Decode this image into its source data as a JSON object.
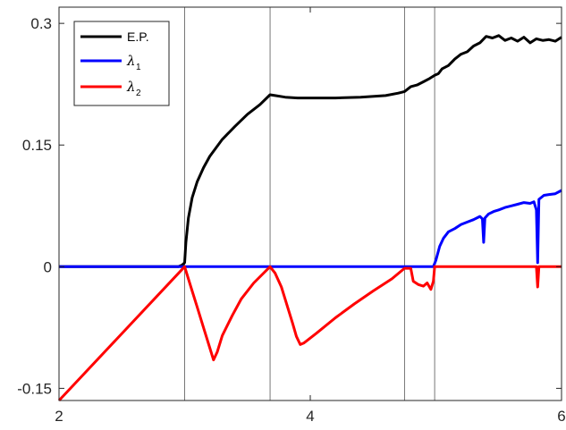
{
  "chart_data": {
    "type": "line",
    "title": "",
    "xlabel": "",
    "ylabel": "",
    "xlim": [
      2,
      6
    ],
    "ylim": [
      -0.165,
      0.32
    ],
    "x_ticks": [
      2,
      4,
      6
    ],
    "x_tick_labels": [
      "2",
      "4",
      "6"
    ],
    "y_ticks": [
      0.3,
      0.15,
      0,
      -0.15
    ],
    "y_tick_labels": [
      "0.3",
      "0.15",
      "0",
      "-0.15"
    ],
    "grid": false,
    "legend_position": "top-left",
    "legend": {
      "ep": "E.P.",
      "l1_sym": "λ",
      "l1_sub": "1",
      "l2_sym": "λ",
      "l2_sub": "2"
    },
    "vertical_lines_x": [
      3.0,
      3.68,
      4.75,
      4.99
    ],
    "series": [
      {
        "name": "E.P.",
        "color": "#000000",
        "points": [
          [
            2.0,
            0.0
          ],
          [
            2.5,
            0.0
          ],
          [
            2.95,
            0.0
          ],
          [
            2.98,
            0.002
          ],
          [
            3.0,
            0.005
          ],
          [
            3.01,
            0.03
          ],
          [
            3.03,
            0.06
          ],
          [
            3.06,
            0.085
          ],
          [
            3.1,
            0.105
          ],
          [
            3.15,
            0.122
          ],
          [
            3.2,
            0.136
          ],
          [
            3.3,
            0.157
          ],
          [
            3.4,
            0.173
          ],
          [
            3.5,
            0.188
          ],
          [
            3.6,
            0.2
          ],
          [
            3.68,
            0.212
          ],
          [
            3.72,
            0.211
          ],
          [
            3.8,
            0.209
          ],
          [
            3.9,
            0.208
          ],
          [
            4.0,
            0.208
          ],
          [
            4.2,
            0.208
          ],
          [
            4.4,
            0.209
          ],
          [
            4.6,
            0.211
          ],
          [
            4.7,
            0.214
          ],
          [
            4.75,
            0.216
          ],
          [
            4.8,
            0.222
          ],
          [
            4.85,
            0.224
          ],
          [
            4.9,
            0.228
          ],
          [
            4.95,
            0.232
          ],
          [
            4.99,
            0.236
          ],
          [
            5.02,
            0.238
          ],
          [
            5.05,
            0.244
          ],
          [
            5.1,
            0.248
          ],
          [
            5.15,
            0.256
          ],
          [
            5.2,
            0.262
          ],
          [
            5.25,
            0.265
          ],
          [
            5.3,
            0.272
          ],
          [
            5.35,
            0.276
          ],
          [
            5.4,
            0.284
          ],
          [
            5.45,
            0.282
          ],
          [
            5.5,
            0.285
          ],
          [
            5.55,
            0.279
          ],
          [
            5.6,
            0.282
          ],
          [
            5.65,
            0.278
          ],
          [
            5.7,
            0.283
          ],
          [
            5.75,
            0.276
          ],
          [
            5.8,
            0.281
          ],
          [
            5.85,
            0.279
          ],
          [
            5.9,
            0.28
          ],
          [
            5.95,
            0.278
          ],
          [
            6.0,
            0.283
          ]
        ]
      },
      {
        "name": "λ1",
        "color": "#0000ff",
        "points": [
          [
            2.0,
            0.0
          ],
          [
            3.0,
            0.0
          ],
          [
            3.68,
            0.0
          ],
          [
            4.75,
            0.0
          ],
          [
            4.98,
            0.0
          ],
          [
            5.0,
            0.008
          ],
          [
            5.03,
            0.025
          ],
          [
            5.06,
            0.035
          ],
          [
            5.1,
            0.043
          ],
          [
            5.15,
            0.047
          ],
          [
            5.2,
            0.052
          ],
          [
            5.25,
            0.055
          ],
          [
            5.3,
            0.058
          ],
          [
            5.35,
            0.062
          ],
          [
            5.37,
            0.059
          ],
          [
            5.38,
            0.03
          ],
          [
            5.39,
            0.06
          ],
          [
            5.42,
            0.065
          ],
          [
            5.46,
            0.068
          ],
          [
            5.5,
            0.07
          ],
          [
            5.55,
            0.073
          ],
          [
            5.6,
            0.075
          ],
          [
            5.65,
            0.077
          ],
          [
            5.7,
            0.079
          ],
          [
            5.75,
            0.078
          ],
          [
            5.78,
            0.08
          ],
          [
            5.8,
            0.07
          ],
          [
            5.81,
            0.005
          ],
          [
            5.82,
            0.083
          ],
          [
            5.86,
            0.088
          ],
          [
            5.9,
            0.089
          ],
          [
            5.95,
            0.09
          ],
          [
            6.0,
            0.094
          ]
        ]
      },
      {
        "name": "λ2",
        "color": "#ff0000",
        "points": [
          [
            2.0,
            -0.165
          ],
          [
            3.0,
            0.0
          ],
          [
            3.05,
            -0.025
          ],
          [
            3.1,
            -0.05
          ],
          [
            3.15,
            -0.075
          ],
          [
            3.19,
            -0.095
          ],
          [
            3.23,
            -0.115
          ],
          [
            3.26,
            -0.105
          ],
          [
            3.3,
            -0.085
          ],
          [
            3.38,
            -0.06
          ],
          [
            3.45,
            -0.04
          ],
          [
            3.55,
            -0.02
          ],
          [
            3.68,
            0.0
          ],
          [
            3.72,
            -0.008
          ],
          [
            3.77,
            -0.025
          ],
          [
            3.82,
            -0.05
          ],
          [
            3.86,
            -0.07
          ],
          [
            3.89,
            -0.086
          ],
          [
            3.92,
            -0.096
          ],
          [
            3.95,
            -0.094
          ],
          [
            4.05,
            -0.082
          ],
          [
            4.2,
            -0.063
          ],
          [
            4.35,
            -0.046
          ],
          [
            4.5,
            -0.03
          ],
          [
            4.65,
            -0.015
          ],
          [
            4.75,
            -0.002
          ],
          [
            4.8,
            -0.002
          ],
          [
            4.82,
            -0.018
          ],
          [
            4.86,
            -0.022
          ],
          [
            4.9,
            -0.024
          ],
          [
            4.93,
            -0.02
          ],
          [
            4.96,
            -0.028
          ],
          [
            4.98,
            -0.018
          ],
          [
            4.99,
            0.0
          ],
          [
            5.2,
            0.0
          ],
          [
            5.5,
            0.0
          ],
          [
            5.8,
            0.0
          ],
          [
            5.81,
            -0.025
          ],
          [
            5.82,
            0.0
          ],
          [
            6.0,
            0.0
          ]
        ]
      }
    ]
  }
}
